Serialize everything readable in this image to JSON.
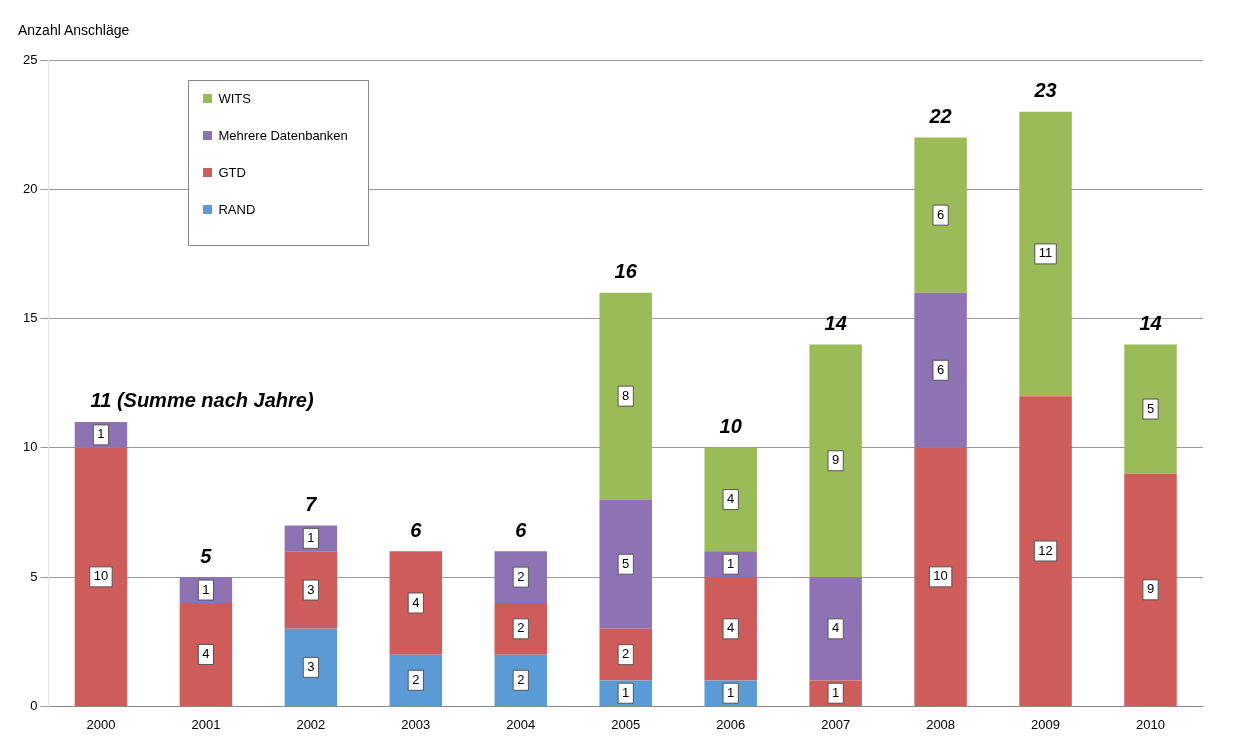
{
  "chart_data": {
    "type": "bar",
    "stacked": true,
    "ylabel": "Anzahl Anschläge",
    "categories": [
      "2000",
      "2001",
      "2002",
      "2003",
      "2004",
      "2005",
      "2006",
      "2007",
      "2008",
      "2009",
      "2010"
    ],
    "series": [
      {
        "name": "RAND",
        "color": "#5b9bd5",
        "values": [
          null,
          null,
          3,
          2,
          2,
          1,
          1,
          null,
          null,
          null,
          null
        ]
      },
      {
        "name": "GTD",
        "color": "#cd5c5a",
        "values": [
          10,
          4,
          3,
          4,
          2,
          2,
          4,
          1,
          10,
          12,
          9
        ]
      },
      {
        "name": "Mehrere Datenbanken",
        "color": "#8e73b4",
        "values": [
          1,
          1,
          1,
          null,
          2,
          5,
          1,
          4,
          6,
          null,
          null
        ]
      },
      {
        "name": "WITS",
        "color": "#9bbb59",
        "values": [
          null,
          null,
          null,
          null,
          null,
          8,
          4,
          9,
          6,
          11,
          5
        ]
      }
    ],
    "totals": [
      "11 (Summe nach Jahre)",
      "5",
      "7",
      "6",
      "6",
      "16",
      "10",
      "14",
      "22",
      "23",
      "14"
    ],
    "data_labels": true,
    "ylim": [
      0,
      25
    ],
    "yticks": [
      0,
      5,
      10,
      15,
      20,
      25
    ],
    "grid": "y",
    "legend": "top left"
  }
}
